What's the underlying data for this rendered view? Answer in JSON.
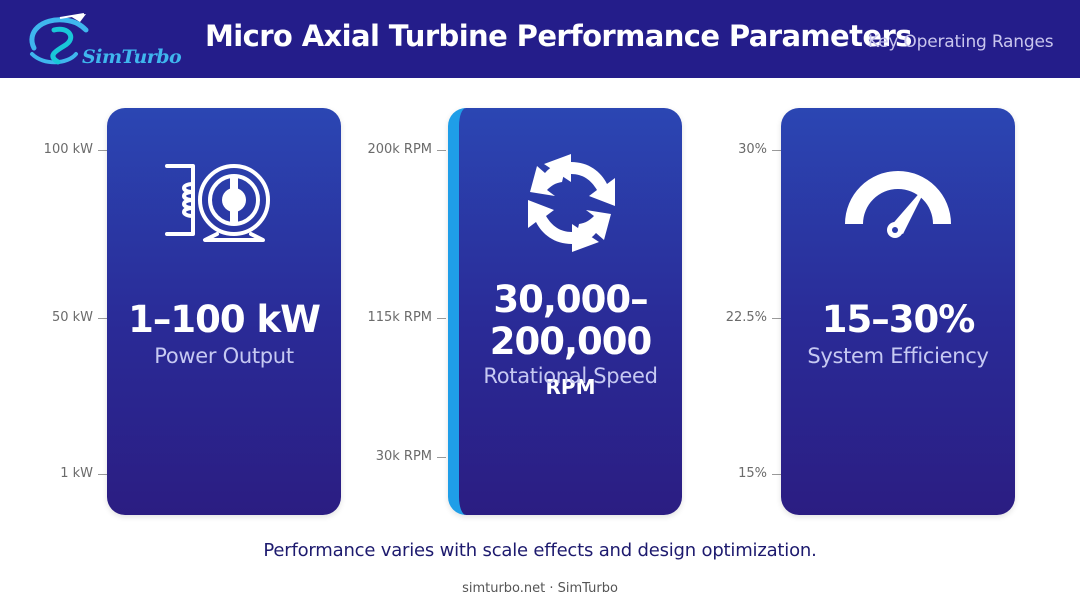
{
  "header": {
    "logo_text": "SimTurbo",
    "title": "Micro Axial Turbine Performance Parameters",
    "subtitle": "Key Operating Ranges",
    "background": "#241d8a"
  },
  "cards": [
    {
      "icon": "generator-icon",
      "value": "1–100 kW",
      "label": "Power Output",
      "scale": [
        "100 kW",
        "50 kW",
        "1 kW"
      ]
    },
    {
      "icon": "rotation-arrows-icon",
      "value_line1": "30,000–",
      "value_line2": "200,000",
      "unit": "RPM",
      "label": "Rotational Speed",
      "scale": [
        "200k RPM",
        "115k RPM",
        "30k RPM"
      ],
      "accent": "#1f9ee8"
    },
    {
      "icon": "speedometer-icon",
      "value": "15–30%",
      "label": "System Efficiency",
      "scale": [
        "30%",
        "22.5%",
        "15%"
      ]
    }
  ],
  "caption": "Performance varies with scale effects and design optimization.",
  "footer": "simturbo.net · SimTurbo"
}
